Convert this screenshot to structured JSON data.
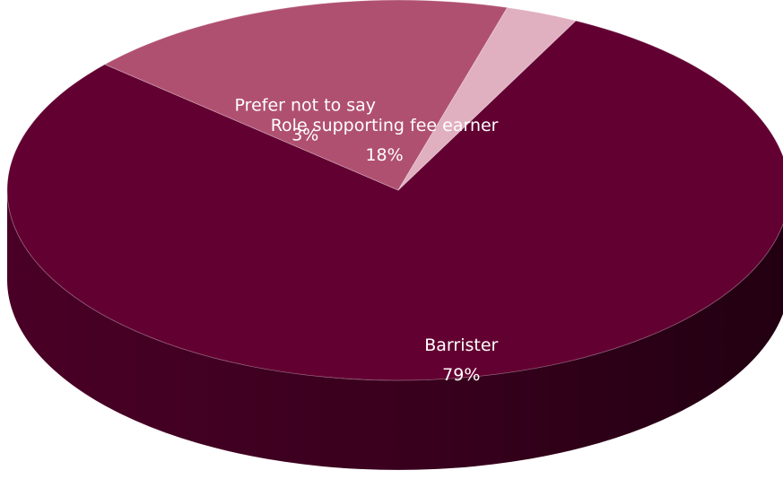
{
  "chart_data": {
    "type": "pie",
    "style": "3d",
    "title": "",
    "legend": "none",
    "start_angle_deg": -63,
    "slices": [
      {
        "name": "Barrister",
        "value": 79,
        "label": "79%",
        "color": "#630032",
        "side_color": "#4a0026"
      },
      {
        "name": "Role supporting fee earner",
        "value": 18,
        "label": "18%",
        "color": "#b05070",
        "side_color": "#6a2a42"
      },
      {
        "name": "Prefer not to say",
        "value": 3,
        "label": "3%",
        "color": "#e0b0c0",
        "side_color": "#a88090"
      }
    ]
  }
}
